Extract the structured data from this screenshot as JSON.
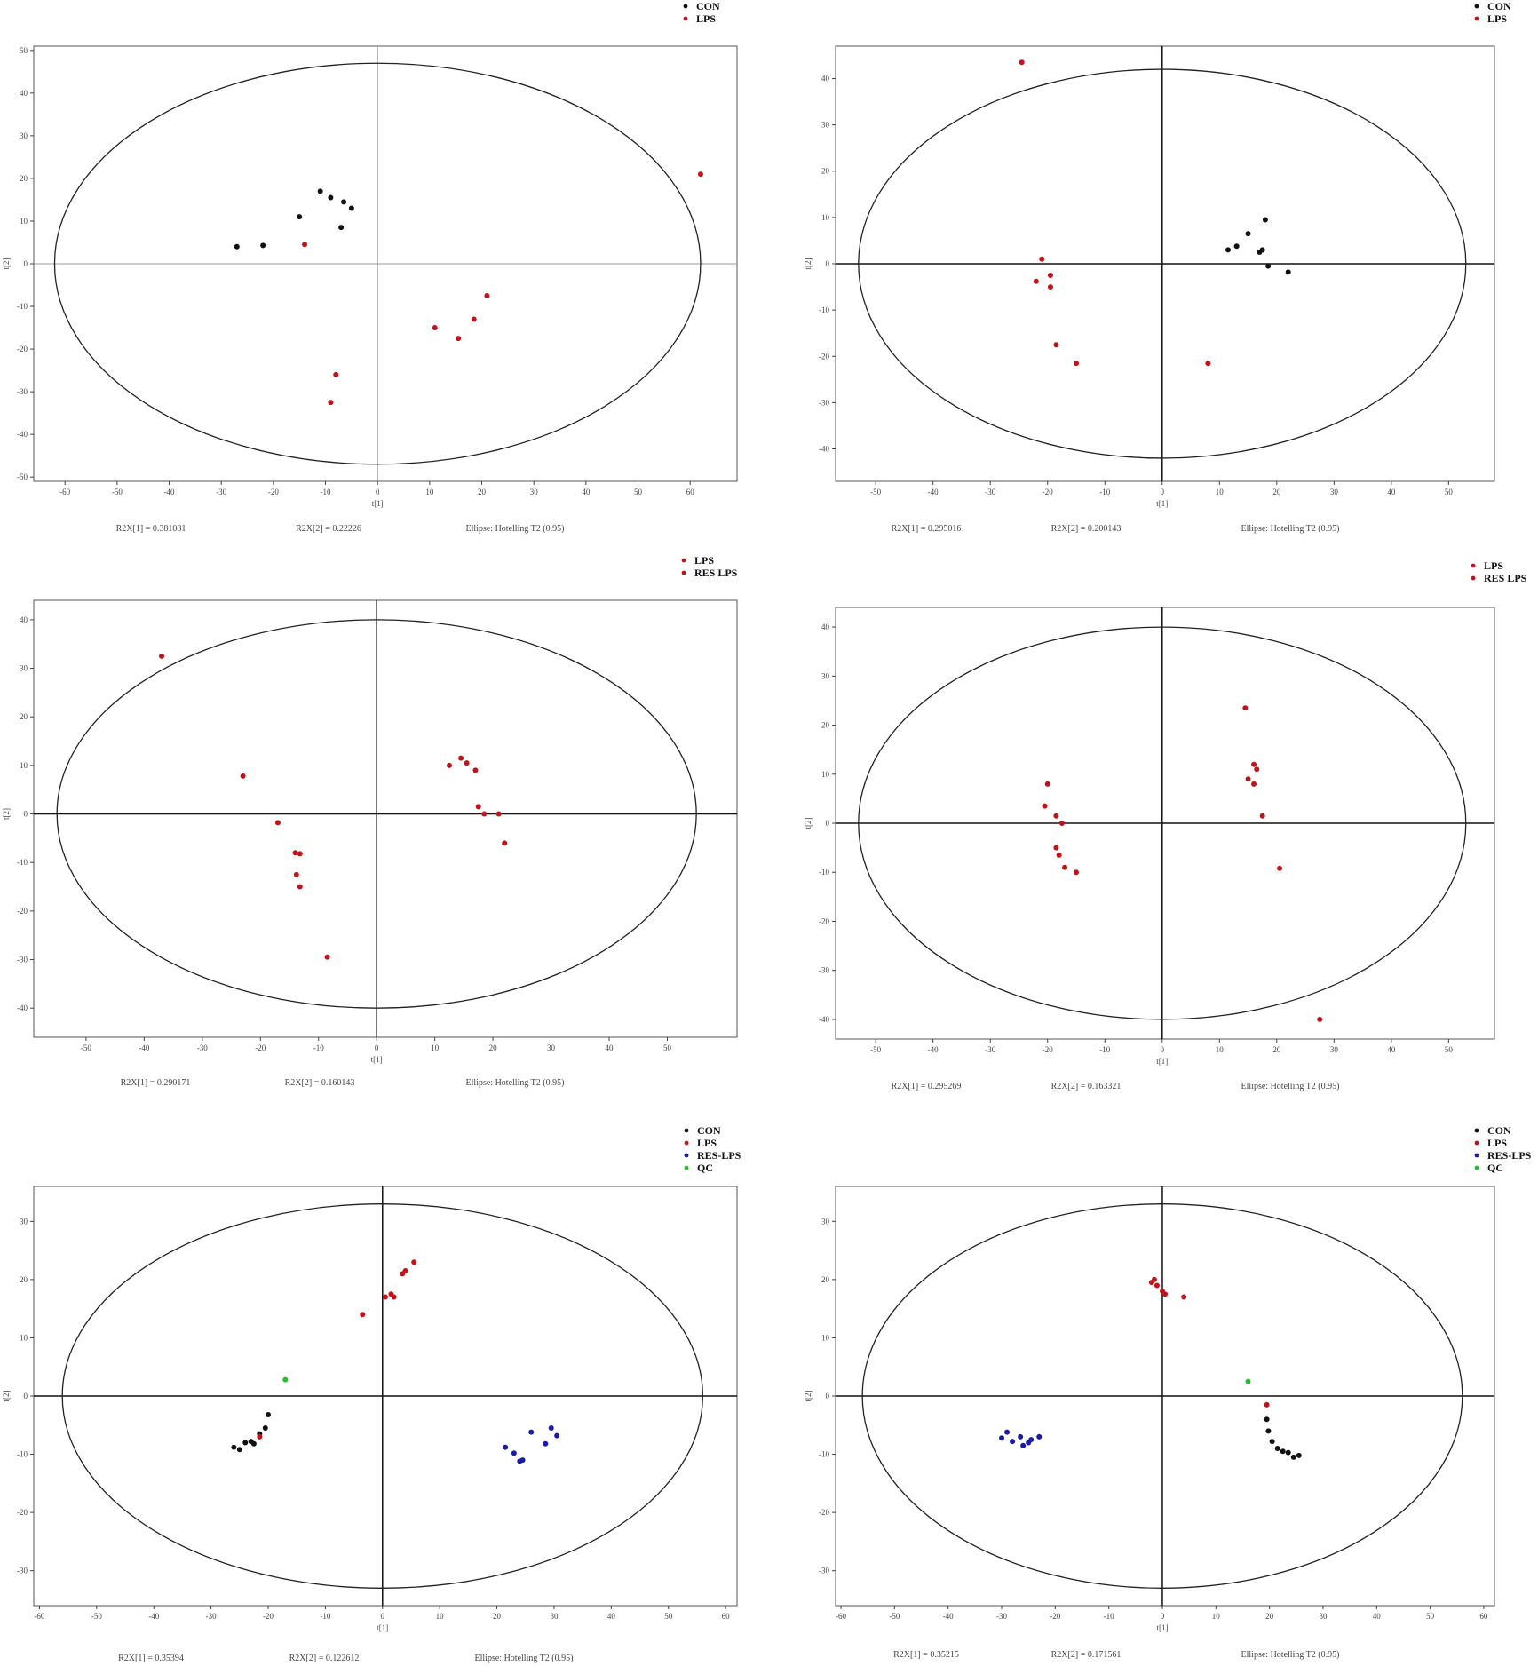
{
  "colors": {
    "CON": "#111111",
    "LPS": "#c0141a",
    "RES LPS": "#c0141a",
    "RES-LPS": "#1a1aa8",
    "QC": "#22c02a"
  },
  "chart_data": [
    {
      "type": "scatter",
      "xlabel": "t[1]",
      "ylabel": "t[2]",
      "xlim": [
        -66,
        69
      ],
      "ylim": [
        -51,
        51
      ],
      "xticks": [
        -60,
        -50,
        -40,
        -30,
        -20,
        -10,
        0,
        10,
        20,
        30,
        40,
        50,
        60
      ],
      "yticks": [
        -50,
        -40,
        -30,
        -20,
        -10,
        0,
        10,
        20,
        30,
        40,
        50
      ],
      "ellipse": {
        "rx": 62,
        "ry": 47
      },
      "axis_style": "thin",
      "legend": [
        "CON",
        "LPS"
      ],
      "footer": [
        "R2X[1] = 0.381081",
        "R2X[2] = 0.22226",
        "Ellipse: Hotelling T2 (0.95)"
      ],
      "series": [
        {
          "name": "CON",
          "points": [
            [
              -27,
              4
            ],
            [
              -22,
              4.3
            ],
            [
              -15,
              11
            ],
            [
              -11,
              17
            ],
            [
              -9,
              15.5
            ],
            [
              -7,
              8.5
            ],
            [
              -6.5,
              14.5
            ],
            [
              -5,
              13
            ]
          ]
        },
        {
          "name": "LPS",
          "points": [
            [
              -14,
              4.5
            ],
            [
              -8,
              -26
            ],
            [
              -9,
              -32.5
            ],
            [
              11,
              -15
            ],
            [
              15.5,
              -17.5
            ],
            [
              18.5,
              -13
            ],
            [
              21,
              -7.5
            ],
            [
              62,
              21
            ]
          ]
        }
      ]
    },
    {
      "type": "scatter",
      "xlabel": "t[1]",
      "ylabel": "t[2]",
      "xlim": [
        -57,
        58
      ],
      "ylim": [
        -47,
        47
      ],
      "xticks": [
        -50,
        -40,
        -30,
        -20,
        -10,
        0,
        10,
        20,
        30,
        40,
        50
      ],
      "yticks": [
        -40,
        -30,
        -20,
        -10,
        0,
        10,
        20,
        30,
        40
      ],
      "ellipse": {
        "rx": 53,
        "ry": 42
      },
      "axis_style": "thick",
      "legend": [
        "CON",
        "LPS"
      ],
      "footer": [
        "R2X[1] = 0.295016",
        "R2X[2] = 0.200143",
        "Ellipse: Hotelling T2 (0.95)"
      ],
      "series": [
        {
          "name": "CON",
          "points": [
            [
              11.5,
              3
            ],
            [
              13,
              3.8
            ],
            [
              15,
              6.5
            ],
            [
              17,
              2.5
            ],
            [
              17.5,
              3
            ],
            [
              18,
              9.5
            ],
            [
              18.5,
              -0.5
            ],
            [
              22,
              -1.8
            ]
          ]
        },
        {
          "name": "LPS",
          "points": [
            [
              -24.5,
              43.5
            ],
            [
              -21,
              1
            ],
            [
              -22,
              -3.8
            ],
            [
              -19.5,
              -2.5
            ],
            [
              -19.5,
              -5
            ],
            [
              -18.5,
              -17.5
            ],
            [
              -15,
              -21.5
            ],
            [
              8,
              -21.5
            ]
          ]
        }
      ]
    },
    {
      "type": "scatter",
      "xlabel": "t[1]",
      "ylabel": "t[2]",
      "xlim": [
        -59,
        62
      ],
      "ylim": [
        -46,
        44
      ],
      "xticks": [
        -50,
        -40,
        -30,
        -20,
        -10,
        0,
        10,
        20,
        30,
        40,
        50
      ],
      "yticks": [
        -40,
        -30,
        -20,
        -10,
        0,
        10,
        20,
        30,
        40
      ],
      "ellipse": {
        "rx": 55,
        "ry": 40
      },
      "axis_style": "thick",
      "legend": [
        "LPS",
        "RES LPS"
      ],
      "footer": [
        "R2X[1] = 0.290171",
        "R2X[2] = 0.160143",
        "Ellipse: Hotelling T2 (0.95)"
      ],
      "series": [
        {
          "name": "LPS",
          "points": [
            [
              -37,
              32.5
            ],
            [
              -23,
              7.8
            ],
            [
              -17,
              -1.8
            ],
            [
              -14,
              -8
            ],
            [
              -13.2,
              -8.2
            ],
            [
              -13.8,
              -12.5
            ],
            [
              -13.2,
              -15
            ],
            [
              -8.5,
              -29.5
            ]
          ]
        },
        {
          "name": "RES LPS",
          "points": [
            [
              12.5,
              10
            ],
            [
              14.5,
              11.5
            ],
            [
              15.5,
              10.5
            ],
            [
              17,
              9
            ],
            [
              17.5,
              1.5
            ],
            [
              18.5,
              0
            ],
            [
              21,
              0
            ],
            [
              22,
              -6
            ]
          ]
        }
      ]
    },
    {
      "type": "scatter",
      "xlabel": "t[1]",
      "ylabel": "t[2]",
      "xlim": [
        -57,
        58
      ],
      "ylim": [
        -44,
        44
      ],
      "xticks": [
        -50,
        -40,
        -30,
        -20,
        -10,
        0,
        10,
        20,
        30,
        40,
        50
      ],
      "yticks": [
        -40,
        -30,
        -20,
        -10,
        0,
        10,
        20,
        30,
        40
      ],
      "ellipse": {
        "rx": 53,
        "ry": 40
      },
      "axis_style": "thick",
      "legend": [
        "LPS",
        "RES LPS"
      ],
      "footer": [
        "R2X[1] = 0.295269",
        "R2X[2] = 0.163321",
        "Ellipse: Hotelling T2 (0.95)"
      ],
      "series": [
        {
          "name": "LPS",
          "points": [
            [
              14.5,
              23.5
            ],
            [
              16,
              12
            ],
            [
              16.5,
              11
            ],
            [
              15,
              9
            ],
            [
              16,
              8
            ],
            [
              17.5,
              1.5
            ],
            [
              20.5,
              -9.2
            ],
            [
              27.5,
              -40
            ]
          ]
        },
        {
          "name": "RES LPS",
          "points": [
            [
              -20,
              8
            ],
            [
              -20.5,
              3.5
            ],
            [
              -18.5,
              1.5
            ],
            [
              -17.5,
              0
            ],
            [
              -18.5,
              -5
            ],
            [
              -18,
              -6.5
            ],
            [
              -17,
              -9
            ],
            [
              -15,
              -10
            ]
          ]
        }
      ]
    },
    {
      "type": "scatter",
      "xlabel": "t[1]",
      "ylabel": "t[2]",
      "xlim": [
        -61,
        62
      ],
      "ylim": [
        -36,
        36
      ],
      "xticks": [
        -60,
        -50,
        -40,
        -30,
        -20,
        -10,
        0,
        10,
        20,
        30,
        40,
        50,
        60
      ],
      "yticks": [
        -30,
        -20,
        -10,
        0,
        10,
        20,
        30
      ],
      "ellipse": {
        "rx": 56,
        "ry": 33
      },
      "axis_style": "thick",
      "legend": [
        "CON",
        "LPS",
        "RES-LPS",
        "QC"
      ],
      "footer": [
        "R2X[1] = 0.35394",
        "R2X[2] = 0.122612",
        "Ellipse: Hotelling T2 (0.95)"
      ],
      "series": [
        {
          "name": "CON",
          "points": [
            [
              -26,
              -8.8
            ],
            [
              -25,
              -9.2
            ],
            [
              -24,
              -8
            ],
            [
              -23,
              -7.8
            ],
            [
              -22.5,
              -8.2
            ],
            [
              -21.5,
              -6.5
            ],
            [
              -20.5,
              -5.5
            ],
            [
              -20,
              -3.2
            ]
          ]
        },
        {
          "name": "LPS",
          "points": [
            [
              -21.5,
              -7
            ],
            [
              -3.5,
              14
            ],
            [
              0.5,
              17
            ],
            [
              1.5,
              17.5
            ],
            [
              2,
              17
            ],
            [
              3.5,
              21
            ],
            [
              4,
              21.5
            ],
            [
              5.5,
              23
            ]
          ]
        },
        {
          "name": "RES-LPS",
          "points": [
            [
              21.5,
              -8.8
            ],
            [
              23,
              -9.8
            ],
            [
              24,
              -11.2
            ],
            [
              24.5,
              -11
            ],
            [
              26,
              -6.2
            ],
            [
              28.5,
              -8.2
            ],
            [
              29.5,
              -5.5
            ],
            [
              30.5,
              -6.8
            ]
          ]
        },
        {
          "name": "QC",
          "points": [
            [
              -17,
              2.8
            ]
          ]
        }
      ]
    },
    {
      "type": "scatter",
      "xlabel": "t[1]",
      "ylabel": "t[2]",
      "xlim": [
        -61,
        62
      ],
      "ylim": [
        -36,
        36
      ],
      "xticks": [
        -60,
        -50,
        -40,
        -30,
        -20,
        -10,
        0,
        10,
        20,
        30,
        40,
        50,
        60
      ],
      "yticks": [
        -30,
        -20,
        -10,
        0,
        10,
        20,
        30
      ],
      "ellipse": {
        "rx": 56,
        "ry": 33
      },
      "axis_style": "thick",
      "legend": [
        "CON",
        "LPS",
        "RES-LPS",
        "QC"
      ],
      "footer": [
        "R2X[1] = 0.35215",
        "R2X[2] = 0.171561",
        "Ellipse: Hotelling T2 (0.95)"
      ],
      "series": [
        {
          "name": "CON",
          "points": [
            [
              19.5,
              -4
            ],
            [
              19.8,
              -6
            ],
            [
              20.5,
              -7.8
            ],
            [
              21.5,
              -9
            ],
            [
              22.5,
              -9.5
            ],
            [
              23.5,
              -9.7
            ],
            [
              24.5,
              -10.5
            ],
            [
              25.5,
              -10.2
            ]
          ]
        },
        {
          "name": "LPS",
          "points": [
            [
              -2,
              19.5
            ],
            [
              -1.5,
              20
            ],
            [
              -1,
              19
            ],
            [
              0,
              18
            ],
            [
              0.5,
              17.5
            ],
            [
              4,
              17
            ],
            [
              19.5,
              -1.5
            ]
          ]
        },
        {
          "name": "RES-LPS",
          "points": [
            [
              -30,
              -7.2
            ],
            [
              -29,
              -6.2
            ],
            [
              -28,
              -7.8
            ],
            [
              -26.5,
              -7
            ],
            [
              -26,
              -8.5
            ],
            [
              -25,
              -8
            ],
            [
              -24.5,
              -7.5
            ],
            [
              -23,
              -7
            ]
          ]
        },
        {
          "name": "QC",
          "points": [
            [
              16,
              2.5
            ]
          ]
        }
      ]
    }
  ]
}
